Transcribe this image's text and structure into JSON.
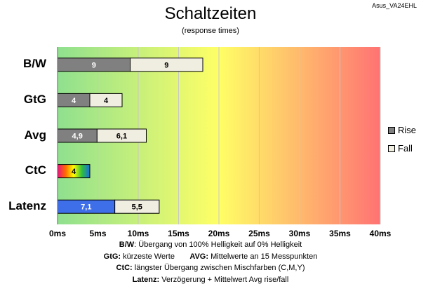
{
  "corner_label": "Asus_VA24EHL",
  "chart_data": {
    "type": "bar",
    "orientation": "horizontal",
    "stacked": true,
    "title": "Schaltzeiten",
    "subtitle": "(response times)",
    "categories": [
      "B/W",
      "GtG",
      "Avg",
      "CtC",
      "Latenz"
    ],
    "series": [
      {
        "name": "Rise",
        "values": [
          9,
          4,
          4.9,
          4,
          7.1
        ],
        "labels": [
          "9",
          "4",
          "4,9",
          "4",
          "7,1"
        ]
      },
      {
        "name": "Fall",
        "values": [
          9,
          4,
          6.1,
          null,
          5.5
        ],
        "labels": [
          "9",
          "4",
          "6,1",
          "",
          "5,5"
        ]
      }
    ],
    "xlim": [
      0,
      40
    ],
    "xticks": [
      "0ms",
      "5ms",
      "10ms",
      "15ms",
      "20ms",
      "25ms",
      "30ms",
      "35ms",
      "40ms"
    ],
    "grid": true,
    "legend": "right",
    "colors": {
      "rise": "#808080",
      "fall": "#f0ede1",
      "latenz_rise": "#3f6fe8",
      "ctc_rise_gradient": [
        "#e8127e",
        "#ff6a00",
        "#ffff00",
        "#2fc23b",
        "#1a6de0"
      ],
      "background_gradient": [
        "#8fe08f",
        "#ffff66",
        "#ff7373"
      ]
    }
  },
  "notes": [
    {
      "bold": "B/W",
      "text": ":  Übergang von 100% Helligkeit auf 0% Helligkeit"
    },
    {
      "bold": "GtG:",
      "text": " kürzeste  Werte",
      "bold2": "AVG:",
      "text2": " Mittelwerte  an 15 Messpunkten"
    },
    {
      "bold": "CtC:",
      "text": " längster Übergang  zwischen Mischfarben  (C,M,Y)"
    },
    {
      "bold": "Latenz:",
      "text": " Verzögerung  + Mittelwert Avg rise/fall"
    }
  ]
}
